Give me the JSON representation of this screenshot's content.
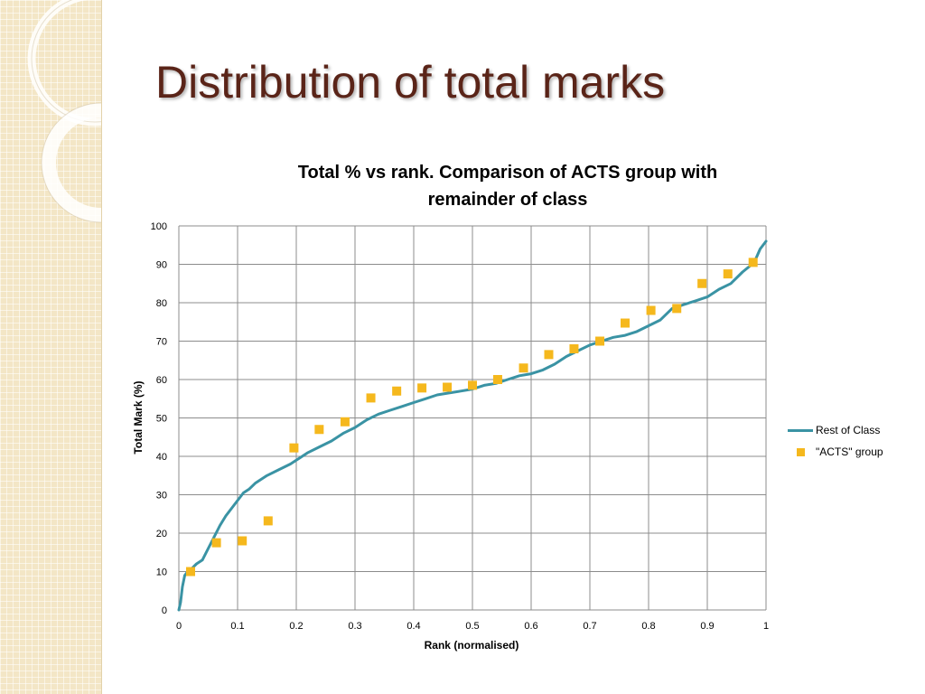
{
  "slide": {
    "title": "Distribution of total marks"
  },
  "colors": {
    "rest_line": "#3a93a4",
    "acts_marker": "#f5b81d",
    "title": "#5a2418",
    "grid": "#8c8c8c"
  },
  "chart_data": {
    "type": "scatter",
    "title_lines": [
      "Total % vs rank. Comparison of ACTS group with",
      "remainder of class"
    ],
    "xlabel": "Rank (normalised)",
    "ylabel": "Total Mark (%)",
    "xlim": [
      0,
      1
    ],
    "ylim": [
      0,
      100
    ],
    "x_ticks": [
      "0",
      "0.1",
      "0.2",
      "0.3",
      "0.4",
      "0.5",
      "0.6",
      "0.7",
      "0.8",
      "0.9",
      "1"
    ],
    "y_ticks": [
      "0",
      "10",
      "20",
      "30",
      "40",
      "50",
      "60",
      "70",
      "80",
      "90",
      "100"
    ],
    "grid": true,
    "legend_position": "right",
    "series": [
      {
        "name": "Rest of Class",
        "kind": "line",
        "x": [
          0,
          0.003,
          0.006,
          0.01,
          0.015,
          0.02,
          0.03,
          0.04,
          0.05,
          0.06,
          0.07,
          0.08,
          0.09,
          0.1,
          0.11,
          0.12,
          0.13,
          0.14,
          0.15,
          0.17,
          0.19,
          0.2,
          0.22,
          0.24,
          0.26,
          0.28,
          0.3,
          0.32,
          0.34,
          0.36,
          0.38,
          0.4,
          0.42,
          0.44,
          0.46,
          0.48,
          0.5,
          0.52,
          0.54,
          0.56,
          0.58,
          0.6,
          0.62,
          0.64,
          0.66,
          0.68,
          0.7,
          0.72,
          0.74,
          0.76,
          0.78,
          0.8,
          0.82,
          0.84,
          0.86,
          0.88,
          0.9,
          0.92,
          0.94,
          0.96,
          0.98,
          0.99,
          1
        ],
        "y": [
          0,
          2,
          6,
          9,
          10,
          10.5,
          12,
          13,
          16,
          19,
          22,
          24.5,
          26.5,
          28.5,
          30.5,
          31.5,
          33,
          34,
          35,
          36.5,
          38,
          39,
          41,
          42.5,
          44,
          46,
          47.5,
          49.5,
          51,
          52,
          53,
          54,
          55,
          56,
          56.5,
          57,
          57.5,
          58.5,
          59,
          60,
          61,
          61.5,
          62.5,
          64,
          66,
          67.5,
          69,
          70,
          71,
          71.5,
          72.5,
          74,
          75.5,
          78.5,
          79.5,
          80.5,
          81.5,
          83.5,
          85,
          88,
          90.5,
          94,
          96
        ]
      },
      {
        "name": "\"ACTS\" group",
        "kind": "scatter",
        "x": [
          0.02,
          0.064,
          0.108,
          0.152,
          0.196,
          0.239,
          0.283,
          0.327,
          0.371,
          0.414,
          0.457,
          0.5,
          0.543,
          0.587,
          0.63,
          0.673,
          0.717,
          0.76,
          0.804,
          0.848,
          0.891,
          0.935,
          0.978
        ],
        "y": [
          10,
          17.5,
          18,
          23.2,
          42.2,
          47,
          49,
          55.2,
          57,
          57.8,
          58,
          58.5,
          60,
          63,
          66.5,
          68,
          70,
          74.7,
          78,
          78.5,
          85,
          87.5,
          90.5
        ]
      }
    ]
  }
}
